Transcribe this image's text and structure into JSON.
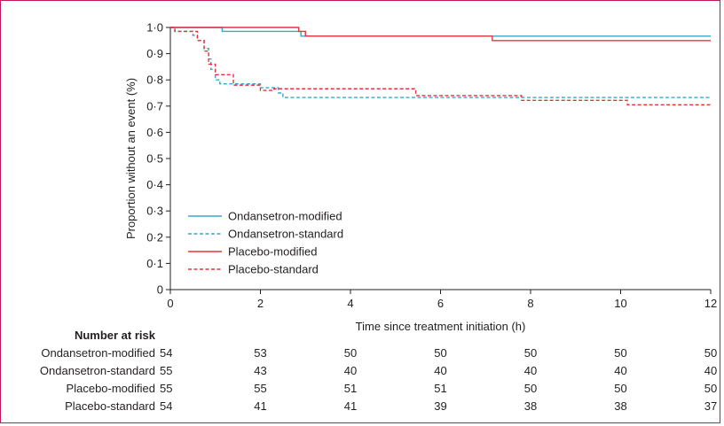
{
  "chart_data": {
    "type": "line",
    "subtype": "kaplan-meier step curve",
    "xlabel": "Time since treatment initiation (h)",
    "ylabel": "Proportion without an event (%)",
    "xlim": [
      0,
      12
    ],
    "ylim": [
      0,
      1.0
    ],
    "x_ticks": [
      0,
      2,
      4,
      6,
      8,
      10,
      12
    ],
    "x_tick_labels": [
      "0",
      "2",
      "4",
      "6",
      "8",
      "10",
      "12"
    ],
    "y_ticks": [
      0,
      0.1,
      0.2,
      0.3,
      0.4,
      0.5,
      0.6,
      0.7,
      0.8,
      0.9,
      1.0
    ],
    "y_tick_labels": [
      "0",
      "0·1",
      "0·2",
      "0·3",
      "0·4",
      "0·5",
      "0·6",
      "0·7",
      "0·8",
      "0·9",
      "1·0"
    ],
    "grid": false,
    "legend_position": "bottom-left",
    "series": [
      {
        "name": "Ondansetron-modified",
        "color": "#3aa6c9",
        "style": "solid",
        "points": [
          [
            0,
            1.0
          ],
          [
            1.15,
            1.0
          ],
          [
            1.15,
            0.985
          ],
          [
            2.9,
            0.985
          ],
          [
            2.9,
            0.967
          ],
          [
            12,
            0.967
          ]
        ]
      },
      {
        "name": "Ondansetron-standard",
        "color": "#3aa6c9",
        "style": "dashed",
        "points": [
          [
            0,
            1.0
          ],
          [
            0.1,
            1.0
          ],
          [
            0.1,
            0.985
          ],
          [
            0.5,
            0.985
          ],
          [
            0.5,
            0.97
          ],
          [
            0.6,
            0.97
          ],
          [
            0.6,
            0.95
          ],
          [
            0.75,
            0.95
          ],
          [
            0.75,
            0.92
          ],
          [
            0.85,
            0.92
          ],
          [
            0.85,
            0.88
          ],
          [
            0.9,
            0.88
          ],
          [
            0.9,
            0.84
          ],
          [
            1.0,
            0.84
          ],
          [
            1.0,
            0.8
          ],
          [
            1.1,
            0.8
          ],
          [
            1.1,
            0.785
          ],
          [
            2.0,
            0.785
          ],
          [
            2.0,
            0.77
          ],
          [
            2.4,
            0.77
          ],
          [
            2.4,
            0.75
          ],
          [
            2.5,
            0.75
          ],
          [
            2.5,
            0.733
          ],
          [
            12,
            0.733
          ]
        ]
      },
      {
        "name": "Placebo-modified",
        "color": "#e8333b",
        "style": "solid",
        "points": [
          [
            0,
            1.0
          ],
          [
            2.85,
            1.0
          ],
          [
            2.85,
            0.985
          ],
          [
            3.0,
            0.985
          ],
          [
            3.0,
            0.967
          ],
          [
            7.15,
            0.967
          ],
          [
            7.15,
            0.95
          ],
          [
            12,
            0.95
          ]
        ]
      },
      {
        "name": "Placebo-standard",
        "color": "#e8333b",
        "style": "dashed",
        "points": [
          [
            0,
            1.0
          ],
          [
            0.1,
            1.0
          ],
          [
            0.1,
            0.985
          ],
          [
            0.6,
            0.985
          ],
          [
            0.6,
            0.95
          ],
          [
            0.75,
            0.95
          ],
          [
            0.75,
            0.91
          ],
          [
            0.85,
            0.91
          ],
          [
            0.85,
            0.86
          ],
          [
            1.0,
            0.86
          ],
          [
            1.0,
            0.82
          ],
          [
            1.4,
            0.82
          ],
          [
            1.4,
            0.78
          ],
          [
            2.0,
            0.78
          ],
          [
            2.0,
            0.76
          ],
          [
            2.3,
            0.76
          ],
          [
            2.3,
            0.766
          ],
          [
            5.45,
            0.766
          ],
          [
            5.45,
            0.74
          ],
          [
            7.8,
            0.74
          ],
          [
            7.8,
            0.722
          ],
          [
            10.15,
            0.722
          ],
          [
            10.15,
            0.705
          ],
          [
            12,
            0.705
          ]
        ]
      }
    ]
  },
  "risk_table": {
    "header": "Number at risk",
    "rows": [
      {
        "label": "Ondansetron-modified",
        "values": [
          "54",
          "53",
          "50",
          "50",
          "50",
          "50",
          "50"
        ]
      },
      {
        "label": "Ondansetron-standard",
        "values": [
          "55",
          "43",
          "40",
          "40",
          "40",
          "40",
          "40"
        ]
      },
      {
        "label": "Placebo-modified",
        "values": [
          "55",
          "55",
          "51",
          "51",
          "50",
          "50",
          "50"
        ]
      },
      {
        "label": "Placebo-standard",
        "values": [
          "54",
          "41",
          "41",
          "39",
          "38",
          "38",
          "37"
        ]
      }
    ]
  }
}
